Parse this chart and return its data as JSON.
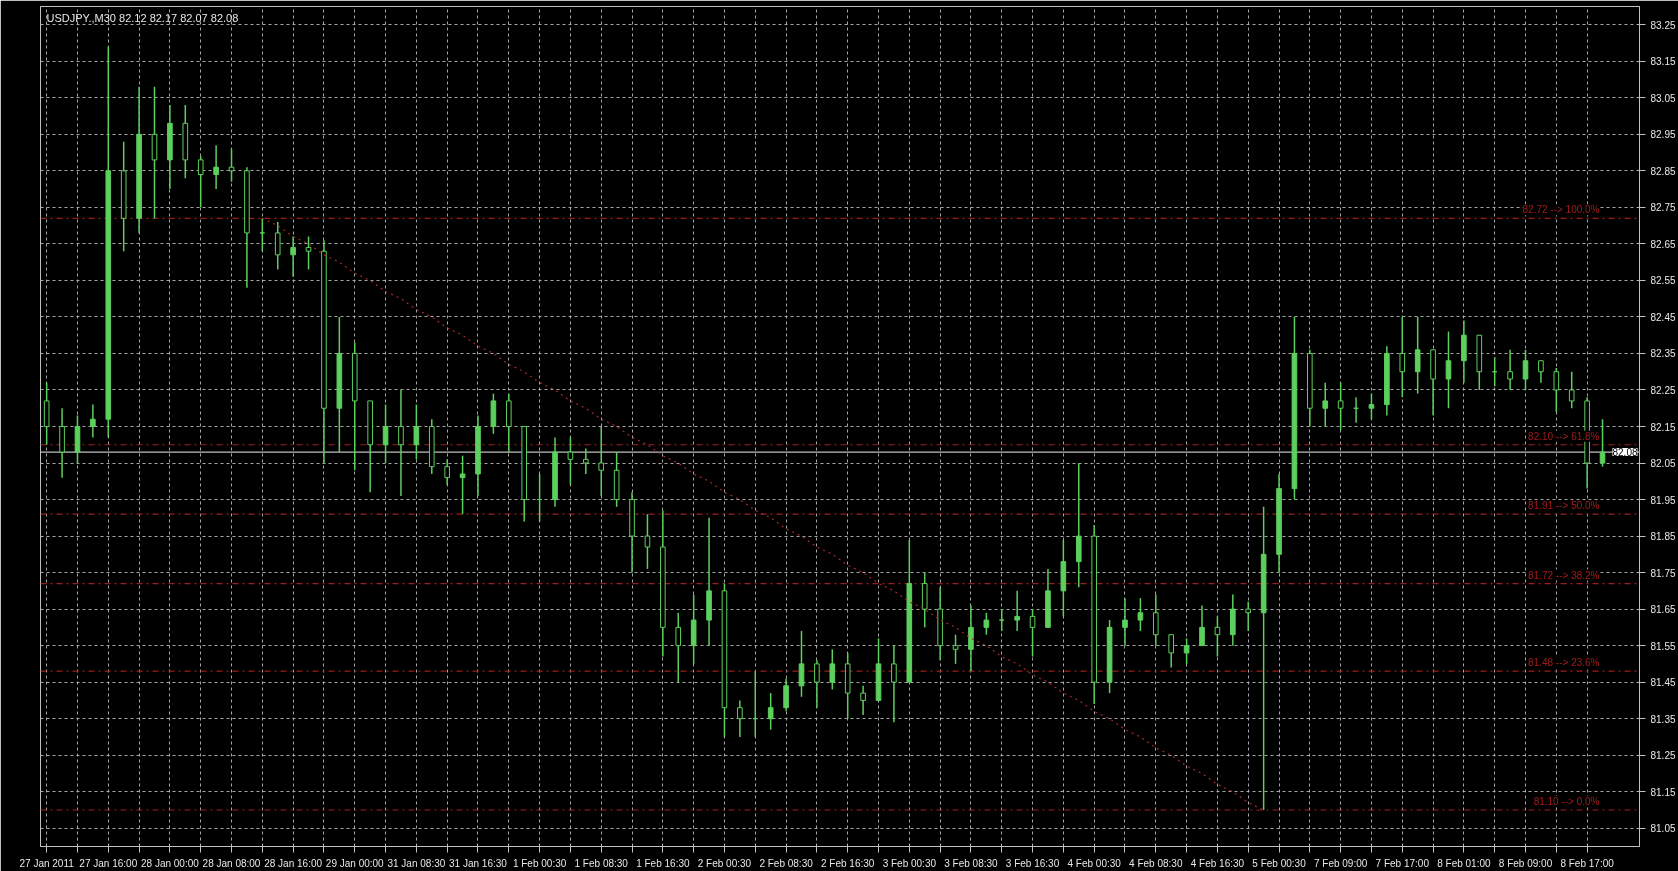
{
  "chart_data": {
    "type": "candlestick",
    "title": "USDJPY.,M30  82.12 82.17 82.07 82.08",
    "color": "#5ccf5c",
    "categories": [
      "27 Jan 2011",
      null,
      null,
      null,
      "27 Jan 16:00",
      null,
      null,
      null,
      "28 Jan 00:00",
      null,
      null,
      null,
      "28 Jan 08:00",
      null,
      null,
      null,
      "28 Jan 16:00",
      null,
      null,
      null,
      "29 Jan 00:00",
      null,
      null,
      null,
      "31 Jan 08:30",
      null,
      null,
      null,
      "31 Jan 16:30",
      null,
      null,
      null,
      "1 Feb 00:30",
      null,
      null,
      null,
      "1 Feb 08:30",
      null,
      null,
      null,
      "1 Feb 16:30",
      null,
      null,
      null,
      "2 Feb 00:30",
      null,
      null,
      null,
      "2 Feb 08:30",
      null,
      null,
      null,
      "2 Feb 16:30",
      null,
      null,
      null,
      "3 Feb 00:30",
      null,
      null,
      null,
      "3 Feb 08:30",
      null,
      null,
      null,
      "3 Feb 16:30",
      null,
      null,
      null,
      "4 Feb 00:30",
      null,
      null,
      null,
      "4 Feb 08:30",
      null,
      null,
      null,
      "4 Feb 16:30",
      null,
      null,
      null,
      "5 Feb 00:30",
      null,
      null,
      null,
      "7 Feb 09:00",
      null,
      null,
      null,
      "7 Feb 17:00",
      null,
      null,
      null,
      "8 Feb 01:00",
      null,
      null,
      null,
      "8 Feb 09:00",
      null,
      null,
      null,
      "8 Feb 17:00",
      null
    ],
    "ohlc": [
      [
        82.22,
        82.27,
        82.1,
        82.15
      ],
      [
        82.15,
        82.2,
        82.01,
        82.08
      ],
      [
        82.08,
        82.18,
        82.05,
        82.15
      ],
      [
        82.15,
        82.21,
        82.12,
        82.17
      ],
      [
        82.17,
        83.19,
        82.12,
        82.85
      ],
      [
        82.85,
        82.93,
        82.63,
        82.72
      ],
      [
        82.72,
        83.08,
        82.68,
        82.95
      ],
      [
        82.95,
        83.08,
        82.72,
        82.88
      ],
      [
        82.88,
        83.03,
        82.8,
        82.98
      ],
      [
        82.98,
        83.03,
        82.83,
        82.88
      ],
      [
        82.88,
        82.89,
        82.75,
        82.84
      ],
      [
        82.84,
        82.92,
        82.8,
        82.86
      ],
      [
        82.86,
        82.91,
        82.82,
        82.85
      ],
      [
        82.85,
        82.86,
        82.53,
        82.68
      ],
      [
        82.68,
        82.72,
        82.63,
        82.68
      ],
      [
        82.68,
        82.71,
        82.58,
        82.62
      ],
      [
        82.62,
        82.67,
        82.56,
        82.64
      ],
      [
        82.64,
        82.67,
        82.58,
        82.63
      ],
      [
        82.63,
        82.66,
        82.05,
        82.2
      ],
      [
        82.2,
        82.45,
        82.08,
        82.35
      ],
      [
        82.35,
        82.38,
        82.03,
        82.22
      ],
      [
        82.22,
        82.22,
        81.97,
        82.1
      ],
      [
        82.1,
        82.21,
        82.05,
        82.15
      ],
      [
        82.15,
        82.25,
        81.96,
        82.1
      ],
      [
        82.1,
        82.21,
        82.06,
        82.15
      ],
      [
        82.15,
        82.17,
        82.02,
        82.04
      ],
      [
        82.04,
        82.06,
        81.99,
        82.01
      ],
      [
        82.01,
        82.07,
        81.91,
        82.02
      ],
      [
        82.02,
        82.18,
        81.96,
        82.15
      ],
      [
        82.15,
        82.24,
        82.13,
        82.22
      ],
      [
        82.22,
        82.24,
        82.08,
        82.15
      ],
      [
        82.15,
        82.15,
        81.89,
        81.95
      ],
      [
        81.95,
        82.02,
        81.89,
        81.95
      ],
      [
        81.95,
        82.12,
        81.93,
        82.08
      ],
      [
        82.08,
        82.12,
        81.99,
        82.06
      ],
      [
        82.06,
        82.09,
        82.02,
        82.05
      ],
      [
        82.05,
        82.15,
        81.96,
        82.03
      ],
      [
        82.03,
        82.08,
        81.93,
        81.95
      ],
      [
        81.95,
        81.97,
        81.75,
        81.85
      ],
      [
        81.85,
        81.91,
        81.76,
        81.82
      ],
      [
        81.82,
        81.92,
        81.52,
        81.6
      ],
      [
        81.6,
        81.64,
        81.45,
        81.55
      ],
      [
        81.55,
        81.69,
        81.5,
        81.62
      ],
      [
        81.62,
        81.9,
        81.55,
        81.7
      ],
      [
        81.7,
        81.72,
        81.3,
        81.38
      ],
      [
        81.38,
        81.4,
        81.3,
        81.35
      ],
      [
        81.35,
        81.48,
        81.3,
        81.35
      ],
      [
        81.35,
        81.42,
        81.32,
        81.38
      ],
      [
        81.38,
        81.46,
        81.37,
        81.44
      ],
      [
        81.44,
        81.59,
        81.41,
        81.5
      ],
      [
        81.5,
        81.51,
        81.38,
        81.45
      ],
      [
        81.45,
        81.54,
        81.43,
        81.5
      ],
      [
        81.5,
        81.53,
        81.35,
        81.42
      ],
      [
        81.42,
        81.44,
        81.36,
        81.4
      ],
      [
        81.4,
        81.57,
        81.4,
        81.5
      ],
      [
        81.5,
        81.55,
        81.34,
        81.45
      ],
      [
        81.45,
        81.84,
        81.45,
        81.72
      ],
      [
        81.72,
        81.75,
        81.6,
        81.65
      ],
      [
        81.65,
        81.71,
        81.51,
        81.55
      ],
      [
        81.55,
        81.58,
        81.5,
        81.54
      ],
      [
        81.54,
        81.66,
        81.48,
        81.6
      ],
      [
        81.6,
        81.64,
        81.58,
        81.62
      ],
      [
        81.62,
        81.65,
        81.59,
        81.62
      ],
      [
        81.62,
        81.7,
        81.59,
        81.63
      ],
      [
        81.63,
        81.65,
        81.52,
        81.6
      ],
      [
        81.6,
        81.76,
        81.6,
        81.7
      ],
      [
        81.7,
        81.84,
        81.63,
        81.78
      ],
      [
        81.78,
        82.05,
        81.71,
        81.85
      ],
      [
        81.85,
        81.88,
        81.39,
        81.45
      ],
      [
        81.45,
        81.62,
        81.42,
        81.6
      ],
      [
        81.6,
        81.68,
        81.55,
        81.62
      ],
      [
        81.62,
        81.68,
        81.59,
        81.64
      ],
      [
        81.64,
        81.69,
        81.55,
        81.58
      ],
      [
        81.58,
        81.58,
        81.49,
        81.53
      ],
      [
        81.53,
        81.57,
        81.5,
        81.55
      ],
      [
        81.55,
        81.66,
        81.55,
        81.6
      ],
      [
        81.6,
        81.63,
        81.52,
        81.58
      ],
      [
        81.58,
        81.69,
        81.55,
        81.65
      ],
      [
        81.65,
        81.67,
        81.59,
        81.64
      ],
      [
        81.64,
        81.93,
        81.1,
        81.8
      ],
      [
        81.8,
        82.02,
        81.75,
        81.98
      ],
      [
        81.98,
        82.45,
        81.95,
        82.35
      ],
      [
        82.35,
        82.36,
        82.15,
        82.2
      ],
      [
        82.2,
        82.27,
        82.15,
        82.22
      ],
      [
        82.22,
        82.27,
        82.14,
        82.2
      ],
      [
        82.2,
        82.23,
        82.16,
        82.2
      ],
      [
        82.2,
        82.24,
        82.17,
        82.21
      ],
      [
        82.21,
        82.37,
        82.18,
        82.35
      ],
      [
        82.35,
        82.45,
        82.23,
        82.3
      ],
      [
        82.3,
        82.45,
        82.24,
        82.36
      ],
      [
        82.36,
        82.36,
        82.18,
        82.28
      ],
      [
        82.28,
        82.41,
        82.2,
        82.33
      ],
      [
        82.33,
        82.44,
        82.27,
        82.4
      ],
      [
        82.4,
        82.4,
        82.25,
        82.3
      ],
      [
        82.3,
        82.34,
        82.26,
        82.3
      ],
      [
        82.3,
        82.36,
        82.25,
        82.28
      ],
      [
        82.28,
        82.36,
        82.25,
        82.33
      ],
      [
        82.33,
        82.33,
        82.27,
        82.3
      ],
      [
        82.3,
        82.31,
        82.19,
        82.25
      ],
      [
        82.25,
        82.3,
        82.2,
        82.22
      ],
      [
        82.22,
        82.23,
        81.98,
        82.05
      ],
      [
        82.05,
        82.17,
        82.04,
        82.08
      ]
    ],
    "series": [
      {
        "type": "line",
        "color": "#a52a2a",
        "line_style": "dotted",
        "values": [
          null,
          null,
          null,
          null,
          null,
          null,
          null,
          null,
          null,
          null,
          null,
          null,
          null,
          null,
          82.72,
          82.7,
          82.67,
          82.65,
          82.62,
          82.6,
          82.57,
          82.55,
          82.52,
          82.5,
          82.47,
          82.45,
          82.42,
          82.4,
          82.37,
          82.35,
          82.32,
          82.3,
          82.27,
          82.25,
          82.22,
          82.2,
          82.17,
          82.15,
          82.12,
          82.1,
          82.07,
          82.05,
          82.02,
          82.0,
          81.97,
          81.95,
          81.92,
          81.9,
          81.87,
          81.85,
          81.82,
          81.8,
          81.77,
          81.75,
          81.72,
          81.7,
          81.67,
          81.65,
          81.62,
          81.6,
          81.57,
          81.55,
          81.52,
          81.5,
          81.47,
          81.45,
          81.42,
          81.4,
          81.37,
          81.35,
          81.32,
          81.3,
          81.27,
          81.25,
          81.22,
          81.2,
          81.17,
          81.15,
          81.12,
          81.1,
          null,
          null,
          null,
          null,
          null,
          null,
          null,
          null,
          null,
          null,
          null,
          null,
          null,
          null,
          null,
          null,
          null,
          null,
          null,
          null,
          null,
          null
        ]
      }
    ],
    "ref_lines": [
      {
        "axis": "y",
        "value": 82.72,
        "label": "82.72 --> 100.0%",
        "color": "#a01c1c",
        "line_style": "dashed"
      },
      {
        "axis": "y",
        "value": 82.1,
        "label": "82.10 --> 61.8%",
        "color": "#a01c1c",
        "line_style": "dashed"
      },
      {
        "axis": "y",
        "value": 81.91,
        "label": "81.91 --> 50.0%",
        "color": "#a01c1c",
        "line_style": "dashed"
      },
      {
        "axis": "y",
        "value": 81.72,
        "label": "81.72 --> 38.2%",
        "color": "#a01c1c",
        "line_style": "dashed"
      },
      {
        "axis": "y",
        "value": 81.48,
        "label": "81.48 --> 23.6%",
        "color": "#a01c1c",
        "line_style": "dashed"
      },
      {
        "axis": "y",
        "value": 81.1,
        "label": "81.10 --> 0.0%",
        "color": "#a01c1c",
        "line_style": "dashed"
      },
      {
        "axis": "y",
        "value": 82.08,
        "label": "82.08",
        "color": "#c0c0c0",
        "line_style": "solid"
      }
    ],
    "ylim": [
      81.0,
      83.3
    ],
    "yticks": [
      81.05,
      81.15,
      81.25,
      81.35,
      81.45,
      81.55,
      81.65,
      81.75,
      81.85,
      81.95,
      82.05,
      82.15,
      82.25,
      82.35,
      82.45,
      82.55,
      82.65,
      82.75,
      82.85,
      82.95,
      83.05,
      83.15,
      83.25
    ],
    "grid": true
  }
}
